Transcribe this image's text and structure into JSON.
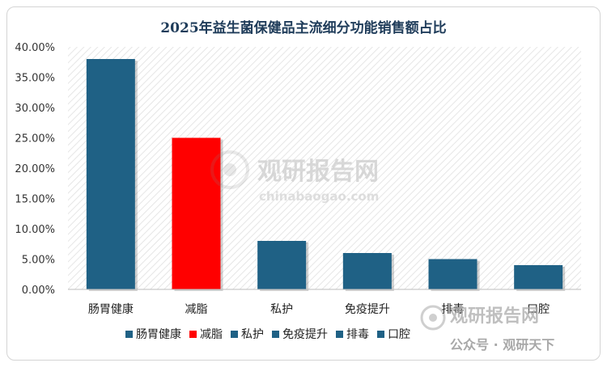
{
  "chart_data": {
    "type": "bar",
    "title": "2025年益生菌保健品主流细分功能销售额占比",
    "categories": [
      "肠胃健康",
      "减脂",
      "私护",
      "免疫提升",
      "排毒",
      "口腔"
    ],
    "values": [
      38,
      25,
      8,
      6,
      5,
      4
    ],
    "ylim": [
      0,
      40
    ],
    "ytick_step": 5,
    "ytick_format": "percent_2dp",
    "legend_position": "bottom",
    "legend": [
      "肠胃健康",
      "减脂",
      "私护",
      "免疫提升",
      "排毒",
      "口腔"
    ],
    "colors": {
      "default": "#1f6185",
      "highlight": "#ff0000",
      "highlight_index": 1
    },
    "grid": false,
    "plot_background": "hatched-light-gray"
  },
  "watermark": {
    "main": "观研报告网",
    "sub": "chinabaogao.com",
    "footer": "公众号 · 观研天下"
  }
}
